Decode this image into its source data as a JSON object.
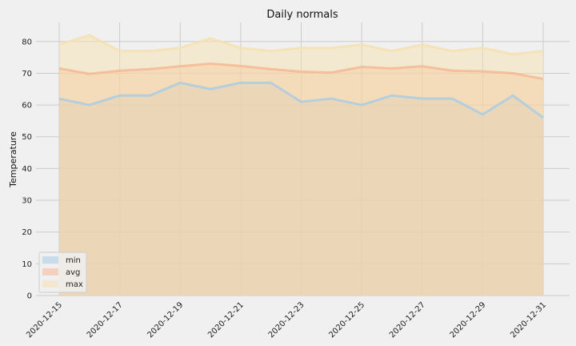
{
  "chart_data": {
    "type": "area",
    "title": "Daily normals",
    "xlabel": "",
    "ylabel": "Temperature",
    "x": [
      "2020-12-15",
      "2020-12-16",
      "2020-12-17",
      "2020-12-18",
      "2020-12-19",
      "2020-12-20",
      "2020-12-21",
      "2020-12-22",
      "2020-12-23",
      "2020-12-24",
      "2020-12-25",
      "2020-12-26",
      "2020-12-27",
      "2020-12-28",
      "2020-12-29",
      "2020-12-30",
      "2020-12-31"
    ],
    "x_tick_labels": [
      "2020-12-15",
      "2020-12-17",
      "2020-12-19",
      "2020-12-21",
      "2020-12-23",
      "2020-12-25",
      "2020-12-27",
      "2020-12-29",
      "2020-12-31"
    ],
    "y_ticks": [
      "0",
      "10",
      "20",
      "30",
      "40",
      "50",
      "60",
      "70",
      "80"
    ],
    "ylim": [
      0,
      86
    ],
    "stacked": false,
    "grid": true,
    "legend_position": "lower-left",
    "series": [
      {
        "name": "min",
        "color": "#a9cce3",
        "values": [
          62,
          60,
          63,
          63,
          67,
          65,
          67,
          67,
          61,
          62,
          60,
          63,
          62,
          62,
          57,
          63,
          56
        ]
      },
      {
        "name": "avg",
        "color": "#f5b895",
        "values": [
          71.5,
          69.8,
          70.8,
          71.3,
          72.2,
          73.0,
          72.3,
          71.3,
          70.5,
          70.2,
          72.0,
          71.5,
          72.2,
          70.8,
          70.6,
          70.0,
          68.2
        ]
      },
      {
        "name": "max",
        "color": "#f6e1b0",
        "values": [
          79,
          82,
          77,
          77,
          78,
          81,
          78,
          77,
          78,
          78,
          79,
          77,
          79,
          77,
          78,
          76,
          77
        ]
      }
    ]
  }
}
